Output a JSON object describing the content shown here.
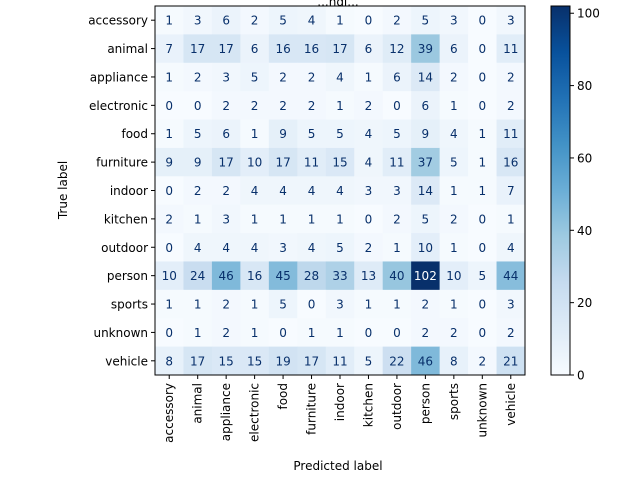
{
  "chart_data": {
    "type": "heatmap",
    "title": "...ngl...",
    "xlabel": "Predicted label",
    "ylabel": "True label",
    "categories": [
      "accessory",
      "animal",
      "appliance",
      "electronic",
      "food",
      "furniture",
      "indoor",
      "kitchen",
      "outdoor",
      "person",
      "sports",
      "unknown",
      "vehicle"
    ],
    "matrix": [
      [
        1,
        3,
        6,
        2,
        5,
        4,
        1,
        0,
        2,
        5,
        3,
        0,
        3
      ],
      [
        7,
        17,
        17,
        6,
        16,
        16,
        17,
        6,
        12,
        39,
        6,
        0,
        11
      ],
      [
        1,
        2,
        3,
        5,
        2,
        2,
        4,
        1,
        6,
        14,
        2,
        0,
        2
      ],
      [
        0,
        0,
        2,
        2,
        2,
        2,
        1,
        2,
        0,
        6,
        1,
        0,
        2
      ],
      [
        1,
        5,
        6,
        1,
        9,
        5,
        5,
        4,
        5,
        9,
        4,
        1,
        11
      ],
      [
        9,
        9,
        17,
        10,
        17,
        11,
        15,
        4,
        11,
        37,
        5,
        1,
        16
      ],
      [
        0,
        2,
        2,
        4,
        4,
        4,
        4,
        3,
        3,
        14,
        1,
        1,
        7
      ],
      [
        2,
        1,
        3,
        1,
        1,
        1,
        1,
        0,
        2,
        5,
        2,
        0,
        1
      ],
      [
        0,
        4,
        4,
        4,
        3,
        4,
        5,
        2,
        1,
        10,
        1,
        0,
        4
      ],
      [
        10,
        24,
        46,
        16,
        45,
        28,
        33,
        13,
        40,
        102,
        10,
        5,
        44
      ],
      [
        1,
        1,
        2,
        1,
        5,
        0,
        3,
        1,
        1,
        2,
        1,
        0,
        3
      ],
      [
        0,
        1,
        2,
        1,
        0,
        1,
        1,
        0,
        0,
        2,
        2,
        0,
        2
      ],
      [
        8,
        17,
        15,
        15,
        19,
        17,
        11,
        5,
        22,
        46,
        8,
        2,
        21
      ]
    ],
    "colorbar": {
      "min": 0,
      "max": 102,
      "ticks": [
        0,
        20,
        40,
        60,
        80,
        100
      ]
    },
    "colormap": "Blues"
  }
}
